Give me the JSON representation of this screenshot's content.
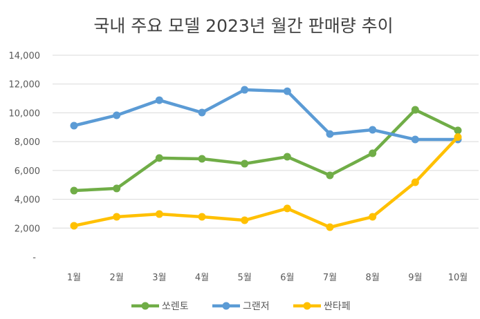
{
  "chart_data": {
    "type": "line",
    "title": "국내 주요 모델 2023년 월간 판매량 추이",
    "xlabel": "",
    "ylabel": "",
    "categories": [
      "1월",
      "2월",
      "3월",
      "4월",
      "5월",
      "6월",
      "7월",
      "8월",
      "9월",
      "10월"
    ],
    "ylim": [
      0,
      14000
    ],
    "yticks": [
      0,
      2000,
      4000,
      6000,
      8000,
      10000,
      12000,
      14000
    ],
    "ytick_labels": [
      "-",
      "2,000",
      "4,000",
      "6,000",
      "8,000",
      "10,000",
      "12,000",
      "14,000"
    ],
    "grid": true,
    "legend_position": "bottom",
    "series": [
      {
        "name": "쏘렌토",
        "color": "#70AD47",
        "values": [
          4600,
          4750,
          6860,
          6810,
          6470,
          6950,
          5660,
          7190,
          10210,
          8780
        ]
      },
      {
        "name": "그랜저",
        "color": "#5B9BD5",
        "values": [
          9110,
          9830,
          10880,
          10020,
          11600,
          11500,
          8530,
          8820,
          8150,
          8150
        ]
      },
      {
        "name": "싼타페",
        "color": "#FFC000",
        "values": [
          2160,
          2780,
          2970,
          2780,
          2540,
          3360,
          2060,
          2780,
          5180,
          8320
        ]
      }
    ]
  }
}
